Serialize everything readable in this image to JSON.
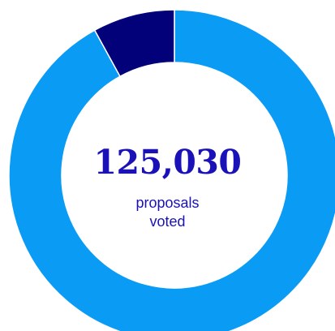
{
  "chart_data": {
    "type": "pie",
    "style": "donut",
    "categories": [
      "",
      ""
    ],
    "values": [
      92,
      8
    ],
    "colors": [
      "#0a9bf5",
      "#02017a"
    ],
    "slice_separator_color": "#ffffff",
    "center_label": {
      "value": "125,030",
      "caption_lines": [
        "proposals",
        "voted"
      ],
      "value_color": "#1a12b8",
      "caption_color": "#1a12b8"
    },
    "title": "",
    "legend": "none"
  }
}
